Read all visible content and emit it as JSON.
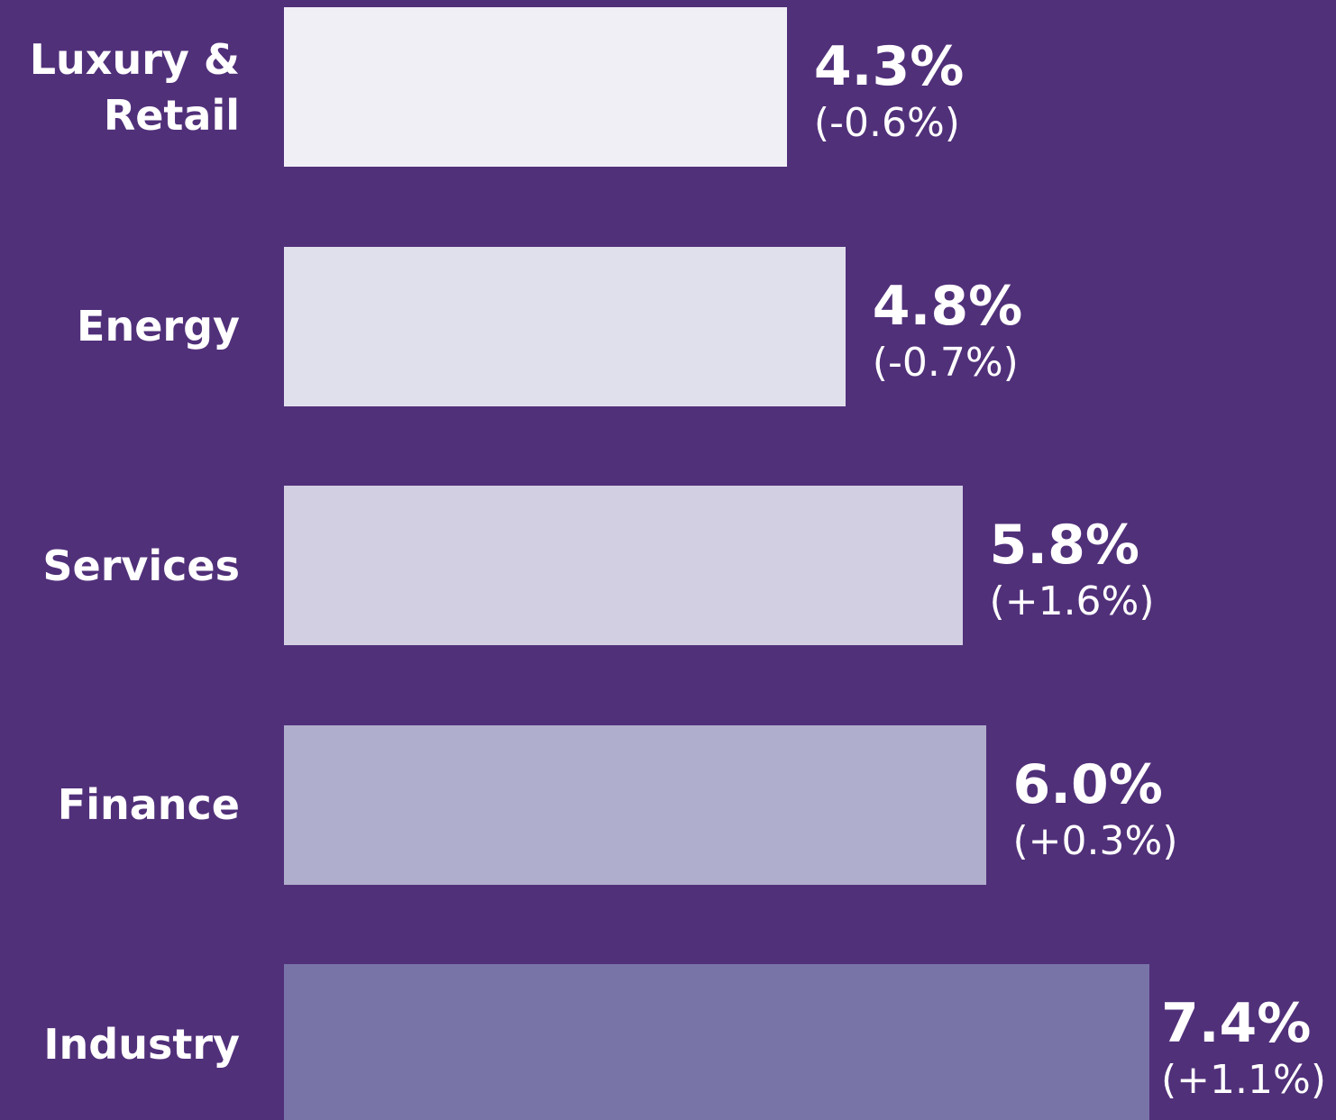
{
  "chart_data": {
    "type": "bar",
    "orientation": "horizontal",
    "background": "#51307a",
    "categories": [
      "Luxury & Retail",
      "Energy",
      "Services",
      "Finance",
      "Industry"
    ],
    "values": [
      4.3,
      4.8,
      5.8,
      6.0,
      7.4
    ],
    "value_labels": [
      "4.3%",
      "4.8%",
      "5.8%",
      "6.0%",
      "7.4%"
    ],
    "changes": [
      -0.6,
      -0.7,
      1.6,
      0.3,
      1.1
    ],
    "change_labels": [
      "(-0.6%)",
      "(-0.7%)",
      "(+1.6%)",
      "(+0.3%)",
      "(+1.1%)"
    ],
    "colors": [
      "#f0eff6",
      "#e0dfec",
      "#d2cfe3",
      "#b0aecd",
      "#7874a8"
    ]
  }
}
